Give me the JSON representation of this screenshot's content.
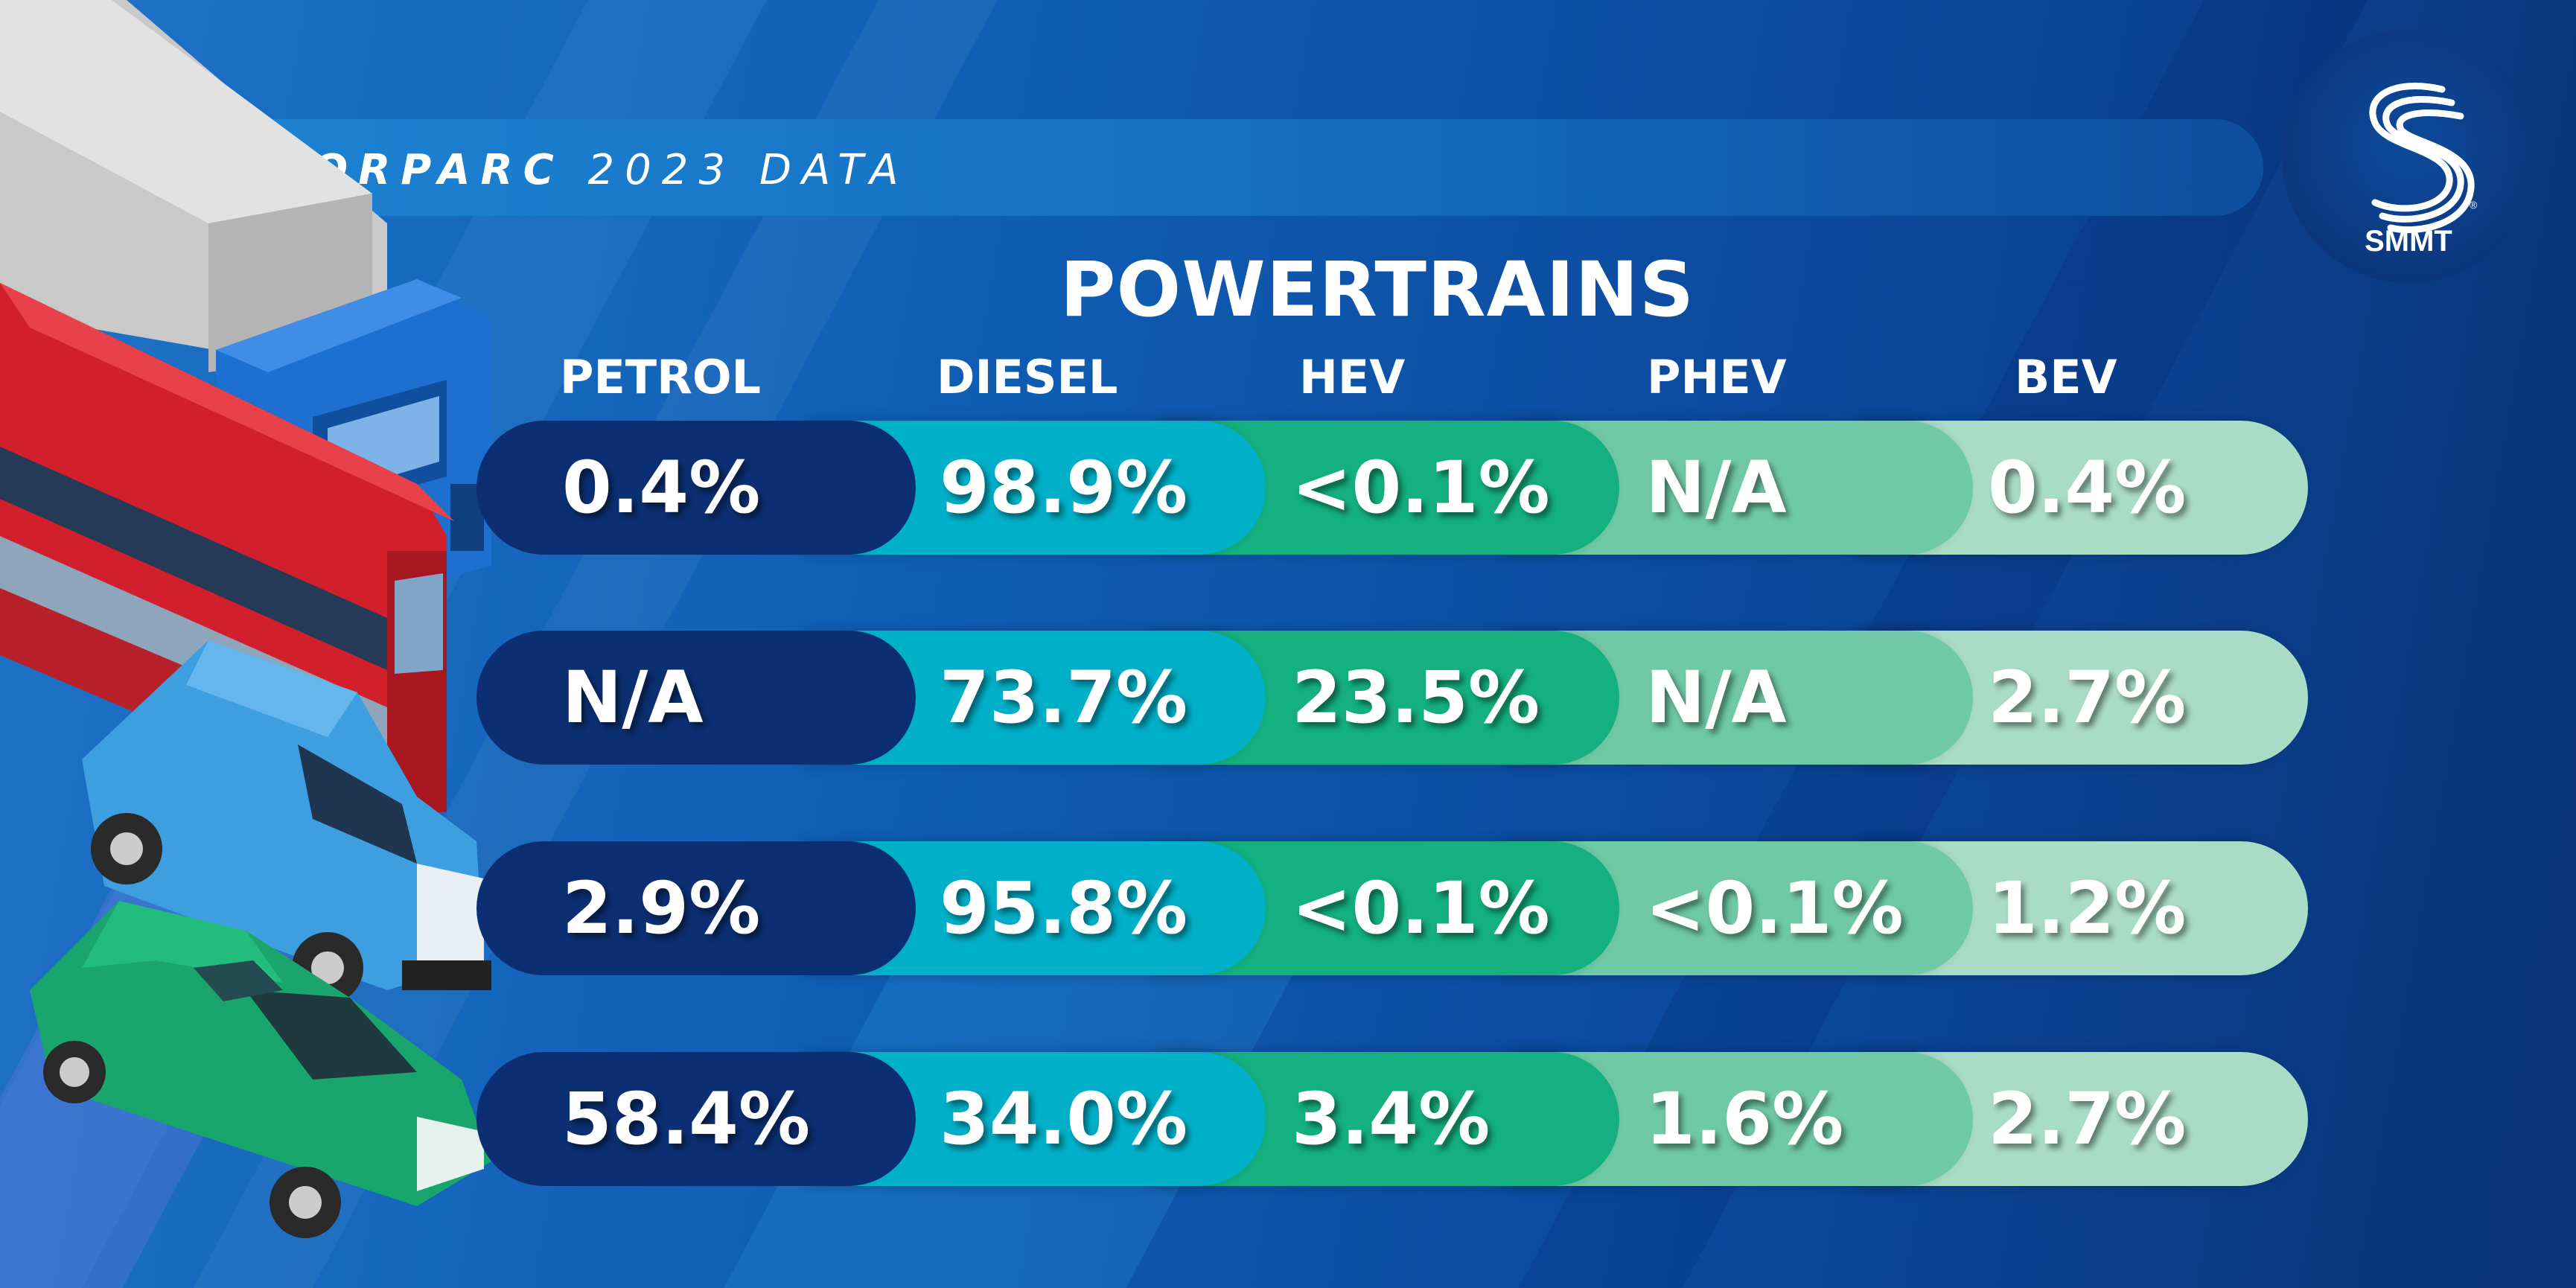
{
  "header": {
    "title_bold": "MOTORPARC",
    "title_rest": "2023 DATA"
  },
  "logo": {
    "text": "SMMT"
  },
  "main": {
    "heading": "POWERTRAINS",
    "columns": [
      "PETROL",
      "DIESEL",
      "HEV",
      "PHEV",
      "BEV"
    ],
    "rows": [
      {
        "vehicle": "truck-icon",
        "values": [
          "0.4%",
          "98.9%",
          "<0.1%",
          "N/A",
          "0.4%"
        ]
      },
      {
        "vehicle": "bus-icon",
        "values": [
          "N/A",
          "73.7%",
          "23.5%",
          "N/A",
          "2.7%"
        ]
      },
      {
        "vehicle": "van-icon",
        "values": [
          "2.9%",
          "95.8%",
          "<0.1%",
          "<0.1%",
          "1.2%"
        ]
      },
      {
        "vehicle": "car-icon",
        "values": [
          "58.4%",
          "34.0%",
          "3.4%",
          "1.6%",
          "2.7%"
        ]
      }
    ]
  },
  "colors": {
    "petrol": "#0c2f73",
    "diesel": "#00afc8",
    "hev": "#14b07f",
    "phev": "#6fc9a6",
    "bev": "#a9dcc6",
    "background": "#0f5fb5"
  }
}
